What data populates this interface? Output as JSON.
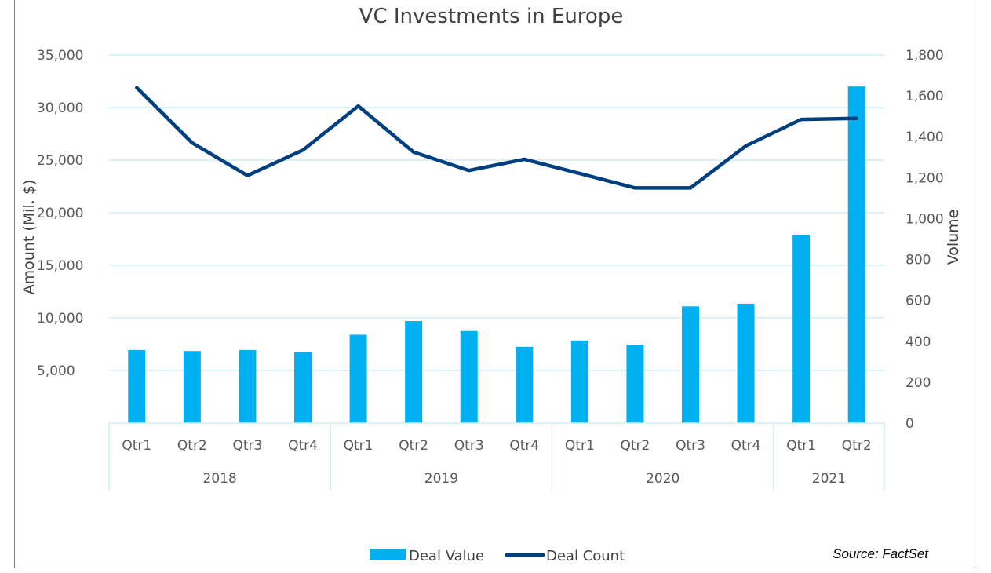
{
  "chart_data": {
    "type": "bar",
    "title": "VC Investments in Europe",
    "ylabel": "Amount (Mil. $)",
    "y2label": "Volume",
    "ylim": [
      0,
      35000
    ],
    "y2lim": [
      0,
      1800
    ],
    "yticks": [
      "5,000",
      "10,000",
      "15,000",
      "20,000",
      "25,000",
      "30,000",
      "35,000"
    ],
    "y2ticks": [
      "0",
      "200",
      "400",
      "600",
      "800",
      "1,000",
      "1,200",
      "1,400",
      "1,600",
      "1,800"
    ],
    "categories": [
      "Qtr1",
      "Qtr2",
      "Qtr3",
      "Qtr4",
      "Qtr1",
      "Qtr2",
      "Qtr3",
      "Qtr4",
      "Qtr1",
      "Qtr2",
      "Qtr3",
      "Qtr4",
      "Qtr1",
      "Qtr2"
    ],
    "groups": [
      {
        "label": "2018",
        "count": 4
      },
      {
        "label": "2019",
        "count": 4
      },
      {
        "label": "2020",
        "count": 4
      },
      {
        "label": "2021",
        "count": 2
      }
    ],
    "series": [
      {
        "name": "Deal Value",
        "type": "bar",
        "axis": "left",
        "color": "#00B0F0",
        "values": [
          6950,
          6850,
          6950,
          6750,
          8400,
          9700,
          8750,
          7250,
          7850,
          7450,
          11100,
          11350,
          17900,
          32000
        ]
      },
      {
        "name": "Deal Count",
        "type": "line",
        "axis": "right",
        "color": "#003F7F",
        "values": [
          1640,
          1370,
          1210,
          1335,
          1550,
          1325,
          1235,
          1290,
          1220,
          1150,
          1150,
          1355,
          1485,
          1490
        ]
      }
    ],
    "grid": true,
    "legend": "bottom",
    "source": "Source: FactSet"
  }
}
